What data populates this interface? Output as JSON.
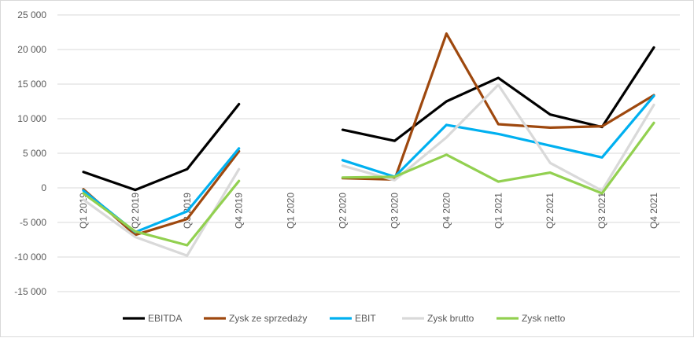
{
  "chart_data": {
    "type": "line",
    "title": "",
    "xlabel": "",
    "ylabel": "",
    "categories": [
      "Q1 2019",
      "Q2 2019",
      "Q3 2019",
      "Q4 2019",
      "Q1 2020",
      "Q2 2020",
      "Q3 2020",
      "Q4 2020",
      "Q1 2021",
      "Q2 2021",
      "Q3 2021",
      "Q4 2021"
    ],
    "ylim": [
      -15000,
      25000
    ],
    "yticks": [
      -15000,
      -10000,
      -5000,
      0,
      5000,
      10000,
      15000,
      20000,
      25000
    ],
    "ytick_labels": [
      "-15 000",
      "-10 000",
      "-5 000",
      "0",
      "5 000",
      "10 000",
      "15 000",
      "20 000",
      "25 000"
    ],
    "grid": true,
    "legend_position": "bottom",
    "series": [
      {
        "name": "EBITDA",
        "color": "#000000",
        "values": [
          2300,
          -300,
          2700,
          12100,
          null,
          8400,
          6800,
          12500,
          15900,
          10600,
          8800,
          20300
        ]
      },
      {
        "name": "Zysk ze sprzedaży",
        "color": "#9e480e",
        "values": [
          -200,
          -6800,
          -4500,
          5300,
          null,
          1400,
          1200,
          22300,
          9200,
          8700,
          8900,
          13400
        ]
      },
      {
        "name": "EBIT",
        "color": "#00b0f0",
        "values": [
          -400,
          -6400,
          -3400,
          5700,
          null,
          4000,
          1600,
          9100,
          7800,
          6100,
          4400,
          13300
        ]
      },
      {
        "name": "Zysk brutto",
        "color": "#d9d9d9",
        "values": [
          -1700,
          -7100,
          -9800,
          2700,
          null,
          3200,
          1100,
          7300,
          14900,
          3600,
          -400,
          12000
        ]
      },
      {
        "name": "Zysk netto",
        "color": "#92d050",
        "values": [
          -800,
          -6300,
          -8300,
          1000,
          null,
          1500,
          1600,
          4800,
          900,
          2200,
          -800,
          9400
        ]
      }
    ]
  }
}
